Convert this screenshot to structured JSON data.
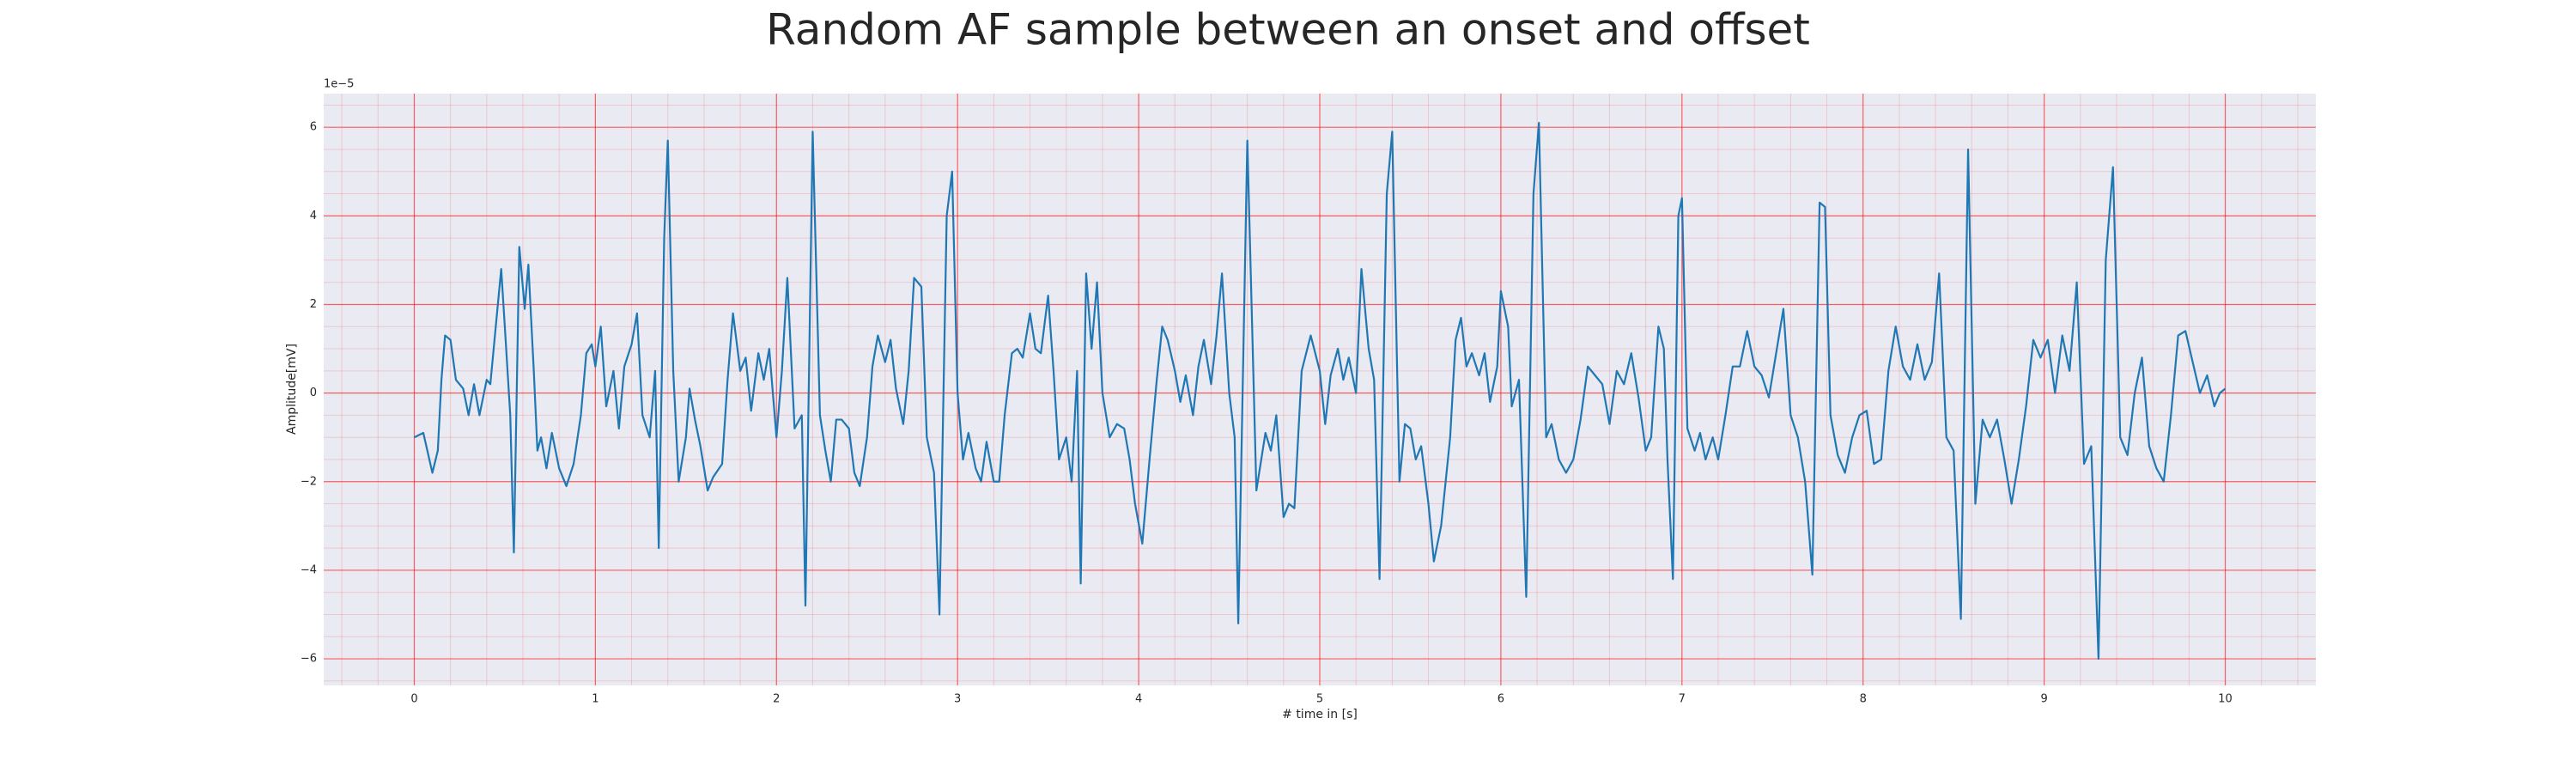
{
  "chart_data": {
    "type": "line",
    "title": "Random AF sample between an onset and offset",
    "xlabel": "# time in [s]",
    "ylabel": "Amplitude[mV]",
    "y_offset_label": "1e−5",
    "color": "#1f77b4",
    "grid": true,
    "grid_color": "#ff0000",
    "minor_grid": true,
    "xlim": [
      -0.5,
      10.5
    ],
    "ylim": [
      -6.6,
      6.76
    ],
    "xticks": [
      0,
      1,
      2,
      3,
      4,
      5,
      6,
      7,
      8,
      9,
      10
    ],
    "yticks": [
      {
        "value": -6,
        "label": "−6"
      },
      {
        "value": -4,
        "label": "−4"
      },
      {
        "value": -2,
        "label": "−2"
      },
      0,
      2,
      4,
      6
    ],
    "xminorticks": [
      -0.4,
      -0.2,
      0.2,
      0.4,
      0.6,
      0.8,
      1.2,
      1.4,
      1.6,
      1.8,
      2.2,
      2.4,
      2.6,
      2.8,
      3.2,
      3.4,
      3.6,
      3.8,
      4.2,
      4.4,
      4.6,
      4.8,
      5.2,
      5.4,
      5.6,
      5.8,
      6.2,
      6.4,
      6.6,
      6.8,
      7.2,
      7.4,
      7.6,
      7.8,
      8.2,
      8.4,
      8.6,
      8.8,
      9.2,
      9.4,
      9.6,
      9.8,
      10.2,
      10.4
    ],
    "yminorticks": [
      -6.5,
      -5.5,
      -5,
      -4.5,
      -3.5,
      -3,
      -2.5,
      -1.5,
      -1,
      -0.5,
      0.5,
      1,
      1.5,
      2.5,
      3,
      3.5,
      4.5,
      5,
      5.5,
      6.5
    ],
    "x": [
      0,
      0.05,
      0.1,
      0.13,
      0.15,
      0.17,
      0.2,
      0.23,
      0.27,
      0.3,
      0.33,
      0.36,
      0.4,
      0.42,
      0.45,
      0.48,
      0.5,
      0.53,
      0.55,
      0.58,
      0.61,
      0.63,
      0.66,
      0.68,
      0.7,
      0.73,
      0.76,
      0.8,
      0.84,
      0.88,
      0.92,
      0.95,
      0.98,
      1.0,
      1.03,
      1.06,
      1.1,
      1.13,
      1.16,
      1.2,
      1.23,
      1.26,
      1.3,
      1.33,
      1.35,
      1.38,
      1.4,
      1.43,
      1.46,
      1.5,
      1.52,
      1.55,
      1.58,
      1.62,
      1.65,
      1.7,
      1.73,
      1.76,
      1.8,
      1.83,
      1.86,
      1.9,
      1.93,
      1.96,
      2.0,
      2.03,
      2.06,
      2.1,
      2.14,
      2.16,
      2.2,
      2.24,
      2.27,
      2.3,
      2.33,
      2.36,
      2.4,
      2.43,
      2.46,
      2.5,
      2.53,
      2.56,
      2.6,
      2.63,
      2.66,
      2.7,
      2.73,
      2.76,
      2.8,
      2.83,
      2.87,
      2.9,
      2.94,
      2.97,
      3.0,
      3.03,
      3.06,
      3.1,
      3.13,
      3.16,
      3.2,
      3.23,
      3.26,
      3.3,
      3.33,
      3.36,
      3.4,
      3.43,
      3.46,
      3.5,
      3.53,
      3.56,
      3.6,
      3.63,
      3.66,
      3.68,
      3.71,
      3.74,
      3.77,
      3.8,
      3.84,
      3.88,
      3.92,
      3.95,
      3.98,
      4.02,
      4.06,
      4.1,
      4.13,
      4.16,
      4.2,
      4.23,
      4.26,
      4.3,
      4.33,
      4.36,
      4.4,
      4.43,
      4.46,
      4.5,
      4.53,
      4.55,
      4.6,
      4.65,
      4.7,
      4.73,
      4.76,
      4.8,
      4.83,
      4.86,
      4.9,
      4.95,
      5.0,
      5.03,
      5.06,
      5.1,
      5.13,
      5.16,
      5.2,
      5.23,
      5.27,
      5.3,
      5.33,
      5.37,
      5.4,
      5.44,
      5.47,
      5.5,
      5.53,
      5.56,
      5.6,
      5.63,
      5.67,
      5.72,
      5.75,
      5.78,
      5.81,
      5.84,
      5.88,
      5.91,
      5.94,
      5.98,
      6.0,
      6.04,
      6.06,
      6.1,
      6.14,
      6.18,
      6.21,
      6.25,
      6.28,
      6.32,
      6.36,
      6.4,
      6.44,
      6.48,
      6.52,
      6.56,
      6.6,
      6.64,
      6.68,
      6.72,
      6.76,
      6.8,
      6.83,
      6.87,
      6.9,
      6.92,
      6.95,
      6.98,
      7.0,
      7.03,
      7.07,
      7.1,
      7.13,
      7.17,
      7.2,
      7.24,
      7.28,
      7.32,
      7.36,
      7.4,
      7.44,
      7.48,
      7.52,
      7.56,
      7.6,
      7.64,
      7.68,
      7.72,
      7.76,
      7.79,
      7.82,
      7.86,
      7.9,
      7.94,
      7.98,
      8.02,
      8.06,
      8.1,
      8.14,
      8.18,
      8.22,
      8.26,
      8.3,
      8.34,
      8.38,
      8.42,
      8.46,
      8.5,
      8.54,
      8.58,
      8.62,
      8.66,
      8.7,
      8.74,
      8.78,
      8.82,
      8.86,
      8.9,
      8.94,
      8.98,
      9.02,
      9.06,
      9.1,
      9.14,
      9.18,
      9.22,
      9.26,
      9.3,
      9.34,
      9.38,
      9.42,
      9.46,
      9.5,
      9.54,
      9.58,
      9.62,
      9.66,
      9.7,
      9.74,
      9.78,
      9.82,
      9.86,
      9.9,
      9.94,
      9.97,
      10.0
    ],
    "values": [
      -1.0,
      -0.9,
      -1.8,
      -1.3,
      0.3,
      1.3,
      1.2,
      0.3,
      0.1,
      -0.5,
      0.2,
      -0.5,
      0.3,
      0.2,
      1.5,
      2.8,
      1.5,
      -0.5,
      -3.6,
      3.3,
      1.9,
      2.9,
      0.5,
      -1.3,
      -1.0,
      -1.7,
      -0.9,
      -1.7,
      -2.1,
      -1.6,
      -0.5,
      0.9,
      1.1,
      0.6,
      1.5,
      -0.3,
      0.5,
      -0.8,
      0.6,
      1.1,
      1.8,
      -0.5,
      -1.0,
      0.5,
      -3.5,
      3.5,
      5.7,
      0.5,
      -2.0,
      -1.0,
      0.1,
      -0.6,
      -1.2,
      -2.2,
      -1.9,
      -1.6,
      0.3,
      1.8,
      0.5,
      0.8,
      -0.4,
      0.9,
      0.3,
      1.0,
      -1.0,
      0.5,
      2.6,
      -0.8,
      -0.5,
      -4.8,
      5.9,
      -0.5,
      -1.3,
      -2.0,
      -0.6,
      -0.6,
      -0.8,
      -1.8,
      -2.1,
      -1.0,
      0.6,
      1.3,
      0.7,
      1.2,
      0.1,
      -0.7,
      0.5,
      2.6,
      2.4,
      -1.0,
      -1.8,
      -5.0,
      4.0,
      5.0,
      0.0,
      -1.5,
      -0.9,
      -1.7,
      -2.0,
      -1.1,
      -2.0,
      -2.0,
      -0.5,
      0.9,
      1.0,
      0.8,
      1.8,
      1.0,
      0.9,
      2.2,
      0.5,
      -1.5,
      -1.0,
      -2.0,
      0.5,
      -4.3,
      2.7,
      1.0,
      2.5,
      0.0,
      -1.0,
      -0.7,
      -0.8,
      -1.5,
      -2.5,
      -3.4,
      -1.5,
      0.3,
      1.5,
      1.2,
      0.5,
      -0.2,
      0.4,
      -0.5,
      0.6,
      1.2,
      0.2,
      1.3,
      2.7,
      0.0,
      -1.0,
      -5.2,
      5.7,
      -2.2,
      -0.9,
      -1.3,
      -0.5,
      -2.8,
      -2.5,
      -2.6,
      0.5,
      1.3,
      0.5,
      -0.7,
      0.4,
      1.0,
      0.3,
      0.8,
      0.0,
      2.8,
      1.0,
      0.3,
      -4.2,
      4.5,
      5.9,
      -2.0,
      -0.7,
      -0.8,
      -1.5,
      -1.2,
      -2.5,
      -3.8,
      -3.0,
      -1.0,
      1.2,
      1.7,
      0.6,
      0.9,
      0.4,
      0.9,
      -0.2,
      0.6,
      2.3,
      1.5,
      -0.3,
      0.3,
      -4.6,
      4.5,
      6.1,
      -1.0,
      -0.7,
      -1.5,
      -1.8,
      -1.5,
      -0.6,
      0.6,
      0.4,
      0.2,
      -0.7,
      0.5,
      0.2,
      0.9,
      -0.1,
      -1.3,
      -1.0,
      1.5,
      1.0,
      -1.5,
      -4.2,
      4.0,
      4.4,
      -0.8,
      -1.3,
      -0.9,
      -1.5,
      -1.0,
      -1.5,
      -0.5,
      0.6,
      0.6,
      1.4,
      0.6,
      0.4,
      -0.1,
      0.9,
      1.9,
      -0.5,
      -1.0,
      -2.0,
      -4.1,
      4.3,
      4.2,
      -0.5,
      -1.4,
      -1.8,
      -1.0,
      -0.5,
      -0.4,
      -1.6,
      -1.5,
      0.5,
      1.5,
      0.6,
      0.3,
      1.1,
      0.3,
      0.7,
      2.7,
      -1.0,
      -1.3,
      -5.1,
      5.5,
      -2.5,
      -0.6,
      -1.0,
      -0.6,
      -1.5,
      -2.5,
      -1.5,
      -0.3,
      1.2,
      0.8,
      1.2,
      0.0,
      1.3,
      0.5,
      2.5,
      -1.6,
      -1.2,
      -6.0,
      3.0,
      5.1,
      -1.0,
      -1.4,
      0.0,
      0.8,
      -1.2,
      -1.7,
      -2.0,
      -0.5,
      1.3,
      1.4,
      0.7,
      0.0,
      0.4,
      -0.3,
      0.0,
      0.1
    ]
  }
}
